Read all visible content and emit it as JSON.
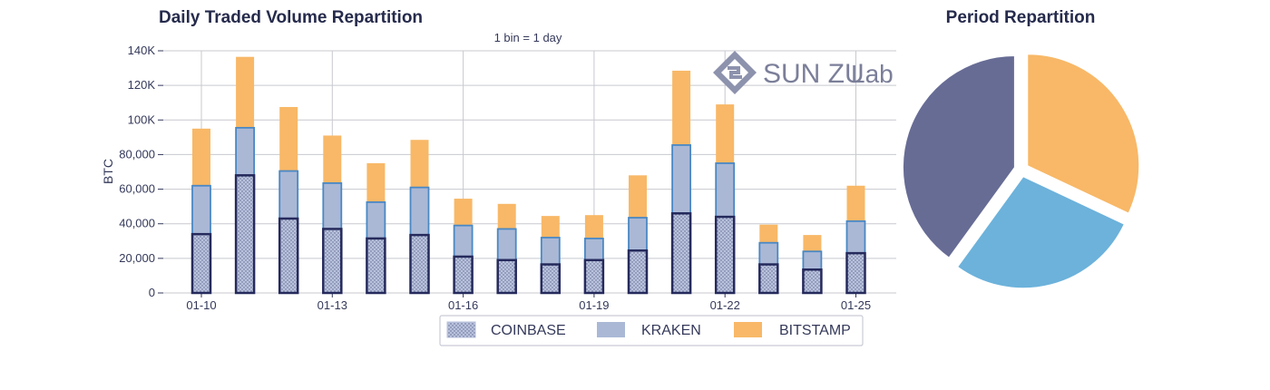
{
  "bar_chart": {
    "title": "Daily Traded Volume Repartition",
    "annotation": "1 bin = 1 day",
    "ylabel": "BTC",
    "logo": {
      "brand": "SUN ZU",
      "suffix": "Lab"
    },
    "chart_data": {
      "type": "bar",
      "stacked": true,
      "title": "Daily Traded Volume Repartition",
      "ylabel": "BTC",
      "ylim": [
        0,
        140000
      ],
      "yticks": [
        {
          "value": 0,
          "label": "0"
        },
        {
          "value": 20000,
          "label": "20,000"
        },
        {
          "value": 40000,
          "label": "40,000"
        },
        {
          "value": 60000,
          "label": "60,000"
        },
        {
          "value": 80000,
          "label": "80,000"
        },
        {
          "value": 100000,
          "label": "100K"
        },
        {
          "value": 120000,
          "label": "120K"
        },
        {
          "value": 140000,
          "label": "140K"
        }
      ],
      "xticks": [
        {
          "index": 0,
          "label": "01-10"
        },
        {
          "index": 3,
          "label": "01-13"
        },
        {
          "index": 6,
          "label": "01-16"
        },
        {
          "index": 9,
          "label": "01-19"
        },
        {
          "index": 12,
          "label": "01-22"
        },
        {
          "index": 15,
          "label": "01-25"
        }
      ],
      "categories": [
        "01-10",
        "01-11",
        "01-12",
        "01-13",
        "01-14",
        "01-15",
        "01-16",
        "01-17",
        "01-18",
        "01-19",
        "01-20",
        "01-21",
        "01-22",
        "01-23",
        "01-24",
        "01-25"
      ],
      "grid": true,
      "legend_position": "bottom",
      "series": [
        {
          "name": "COINBASE",
          "color": "#a8b3d1",
          "edge": "#252a5c",
          "values": [
            34000,
            68000,
            43000,
            37000,
            31500,
            33500,
            21000,
            19000,
            16500,
            19000,
            24500,
            46000,
            44000,
            16500,
            13500,
            23000
          ]
        },
        {
          "name": "KRAKEN",
          "color": "#aab8d6",
          "edge": "#4a88c4",
          "values": [
            28000,
            27500,
            27500,
            26500,
            21000,
            27500,
            18000,
            18000,
            15500,
            12500,
            19000,
            39500,
            31000,
            12500,
            10500,
            18500
          ]
        },
        {
          "name": "BITSTAMP",
          "color": "#f8b867",
          "edge": "#f8b867",
          "values": [
            33000,
            41000,
            37000,
            27500,
            22500,
            27500,
            15500,
            14500,
            12500,
            13500,
            24500,
            43000,
            34000,
            10500,
            9500,
            20500
          ]
        }
      ]
    }
  },
  "pie_chart": {
    "title": "Period Repartition",
    "chart_data": {
      "type": "pie",
      "title": "Period Repartition",
      "slices": [
        {
          "name": "BITSTAMP",
          "value": 32,
          "color": "#f8b867"
        },
        {
          "name": "KRAKEN",
          "value": 28,
          "color": "#6cb2db"
        },
        {
          "name": "COINBASE",
          "value": 40,
          "color": "#676c95"
        }
      ]
    }
  }
}
